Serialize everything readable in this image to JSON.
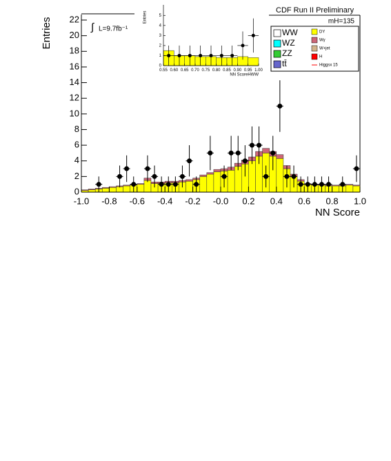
{
  "chart_data": [
    {
      "type": "histogram",
      "title": "CDF Run II Preliminary",
      "x_label": "NN Score",
      "y_label": "Entries",
      "mass_label": "mH=135",
      "lumi_label": "L=9.7fb⁻¹",
      "bins": [
        -1,
        -0.95,
        -0.9,
        -0.85,
        -0.8,
        -0.75,
        -0.7,
        -0.65,
        -0.6,
        -0.55,
        -0.5,
        -0.45,
        -0.4,
        -0.35,
        -0.3,
        -0.25,
        -0.2,
        -0.15,
        -0.1,
        -0.05,
        0,
        0.05,
        0.1,
        0.15,
        0.2,
        0.25,
        0.3,
        0.35,
        0.4,
        0.45,
        0.5,
        0.55,
        0.6,
        0.65,
        0.7,
        0.75,
        0.8,
        0.85,
        0.9,
        0.95,
        1
      ],
      "series": [
        {
          "name": "DY",
          "color": "#ffff00",
          "values": [
            0.2,
            0.3,
            0.4,
            0.5,
            0.6,
            0.7,
            0.8,
            0.9,
            1.0,
            1.5,
            1.1,
            1.1,
            1.2,
            1.2,
            1.3,
            1.4,
            1.6,
            2.0,
            2.3,
            2.6,
            2.7,
            2.8,
            3.3,
            3.6,
            4.0,
            4.6,
            5.0,
            4.6,
            4.3,
            3.0,
            2.0,
            1.4,
            1.0,
            0.9,
            0.9,
            0.8,
            0.8,
            0.8,
            0.9,
            0.8
          ]
        },
        {
          "name": "Wγ",
          "color": "#cc6677",
          "values": [
            0.1,
            0.1,
            0.1,
            0.1,
            0.1,
            0.1,
            0.1,
            0.1,
            0.1,
            0.3,
            0.2,
            0.2,
            0.2,
            0.2,
            0.2,
            0.2,
            0.2,
            0.2,
            0.2,
            0.3,
            0.3,
            0.4,
            0.4,
            0.5,
            0.5,
            0.6,
            0.6,
            0.6,
            0.5,
            0.4,
            0.3,
            0.2,
            0.1,
            0.1,
            0.1,
            0.1,
            0.1,
            0.1,
            0.1,
            0.1
          ]
        }
      ],
      "data": {
        "values": [
          null,
          null,
          1,
          null,
          null,
          2,
          3,
          1,
          null,
          3,
          2,
          1,
          1,
          1,
          2,
          4,
          1,
          null,
          5,
          null,
          2,
          5,
          5,
          4,
          6,
          6,
          2,
          5,
          11,
          2,
          2,
          1,
          1,
          1,
          1,
          1,
          null,
          1,
          null,
          3
        ],
        "errors": [
          null,
          null,
          1,
          null,
          null,
          1.4,
          1.7,
          1,
          null,
          1.7,
          1.4,
          1,
          1,
          1,
          1.4,
          2,
          1,
          null,
          2.2,
          null,
          1.4,
          2.2,
          2.2,
          2,
          2.4,
          2.4,
          1.4,
          2.2,
          3.3,
          1.4,
          1.4,
          1,
          1,
          1,
          1,
          1,
          null,
          1,
          null,
          1.7
        ]
      },
      "xlim": [
        -1,
        1
      ],
      "ylim": [
        0,
        22
      ],
      "xticks": [
        {
          "value": -1,
          "label": "-1.0"
        },
        {
          "value": -0.8,
          "label": "-0.8"
        },
        {
          "value": -0.6,
          "label": "-0.6"
        },
        {
          "value": -0.4,
          "label": "-0.4"
        },
        {
          "value": -0.2,
          "label": "-0.2"
        },
        {
          "value": 0,
          "label": "-0.0"
        },
        {
          "value": 0.2,
          "label": "0.2"
        },
        {
          "value": 0.4,
          "label": "0.4"
        },
        {
          "value": 0.6,
          "label": "0.6"
        },
        {
          "value": 0.8,
          "label": "0.8"
        },
        {
          "value": 1,
          "label": "1.0"
        }
      ],
      "yticks": [
        0,
        2,
        4,
        6,
        8,
        10,
        12,
        14,
        16,
        18,
        20,
        22
      ],
      "legend": [
        {
          "name": "WW",
          "color": "#ffffff"
        },
        {
          "name": "WZ",
          "color": "#00ffff"
        },
        {
          "name": "ZZ",
          "color": "#33cc33"
        },
        {
          "name": "tt̄",
          "color": "#6666cc"
        },
        {
          "name": "DY",
          "color": "#ffff00"
        },
        {
          "name": "Wγ",
          "color": "#cc6677"
        },
        {
          "name": "W+jet",
          "color": "#d2b48c"
        },
        {
          "name": "H",
          "color": "#ff0000"
        },
        {
          "name": "Higgsx 15",
          "color": "#ff0000"
        }
      ]
    },
    {
      "type": "histogram",
      "x_label": "NN ScoreHWW",
      "y_label": "Entries",
      "bins": [
        0.55,
        0.6,
        0.65,
        0.7,
        0.75,
        0.8,
        0.85,
        0.9,
        0.95,
        1
      ],
      "series": [
        {
          "name": "DY",
          "color": "#ffff00",
          "values": [
            1.5,
            1.0,
            1.0,
            0.9,
            0.9,
            0.8,
            0.8,
            0.9,
            0.8
          ]
        }
      ],
      "data": {
        "values": [
          1,
          1,
          1,
          1,
          1,
          1,
          1,
          2,
          3
        ],
        "errors": [
          1,
          1,
          1,
          1,
          1,
          1,
          1,
          1.4,
          1.7
        ]
      },
      "xlim": [
        0.55,
        1
      ],
      "ylim": [
        0,
        5.5
      ],
      "xticks": [
        0.55,
        {
          "value": 0.6,
          "label": "0.60"
        },
        0.65,
        {
          "value": 0.7,
          "label": "0.70"
        },
        0.75,
        {
          "value": 0.8,
          "label": "0.80"
        },
        0.85,
        {
          "value": 0.9,
          "label": "0.90"
        },
        0.95,
        {
          "value": 1,
          "label": "1.00"
        }
      ],
      "yticks": [
        0,
        1,
        2,
        3,
        4,
        5
      ]
    }
  ]
}
